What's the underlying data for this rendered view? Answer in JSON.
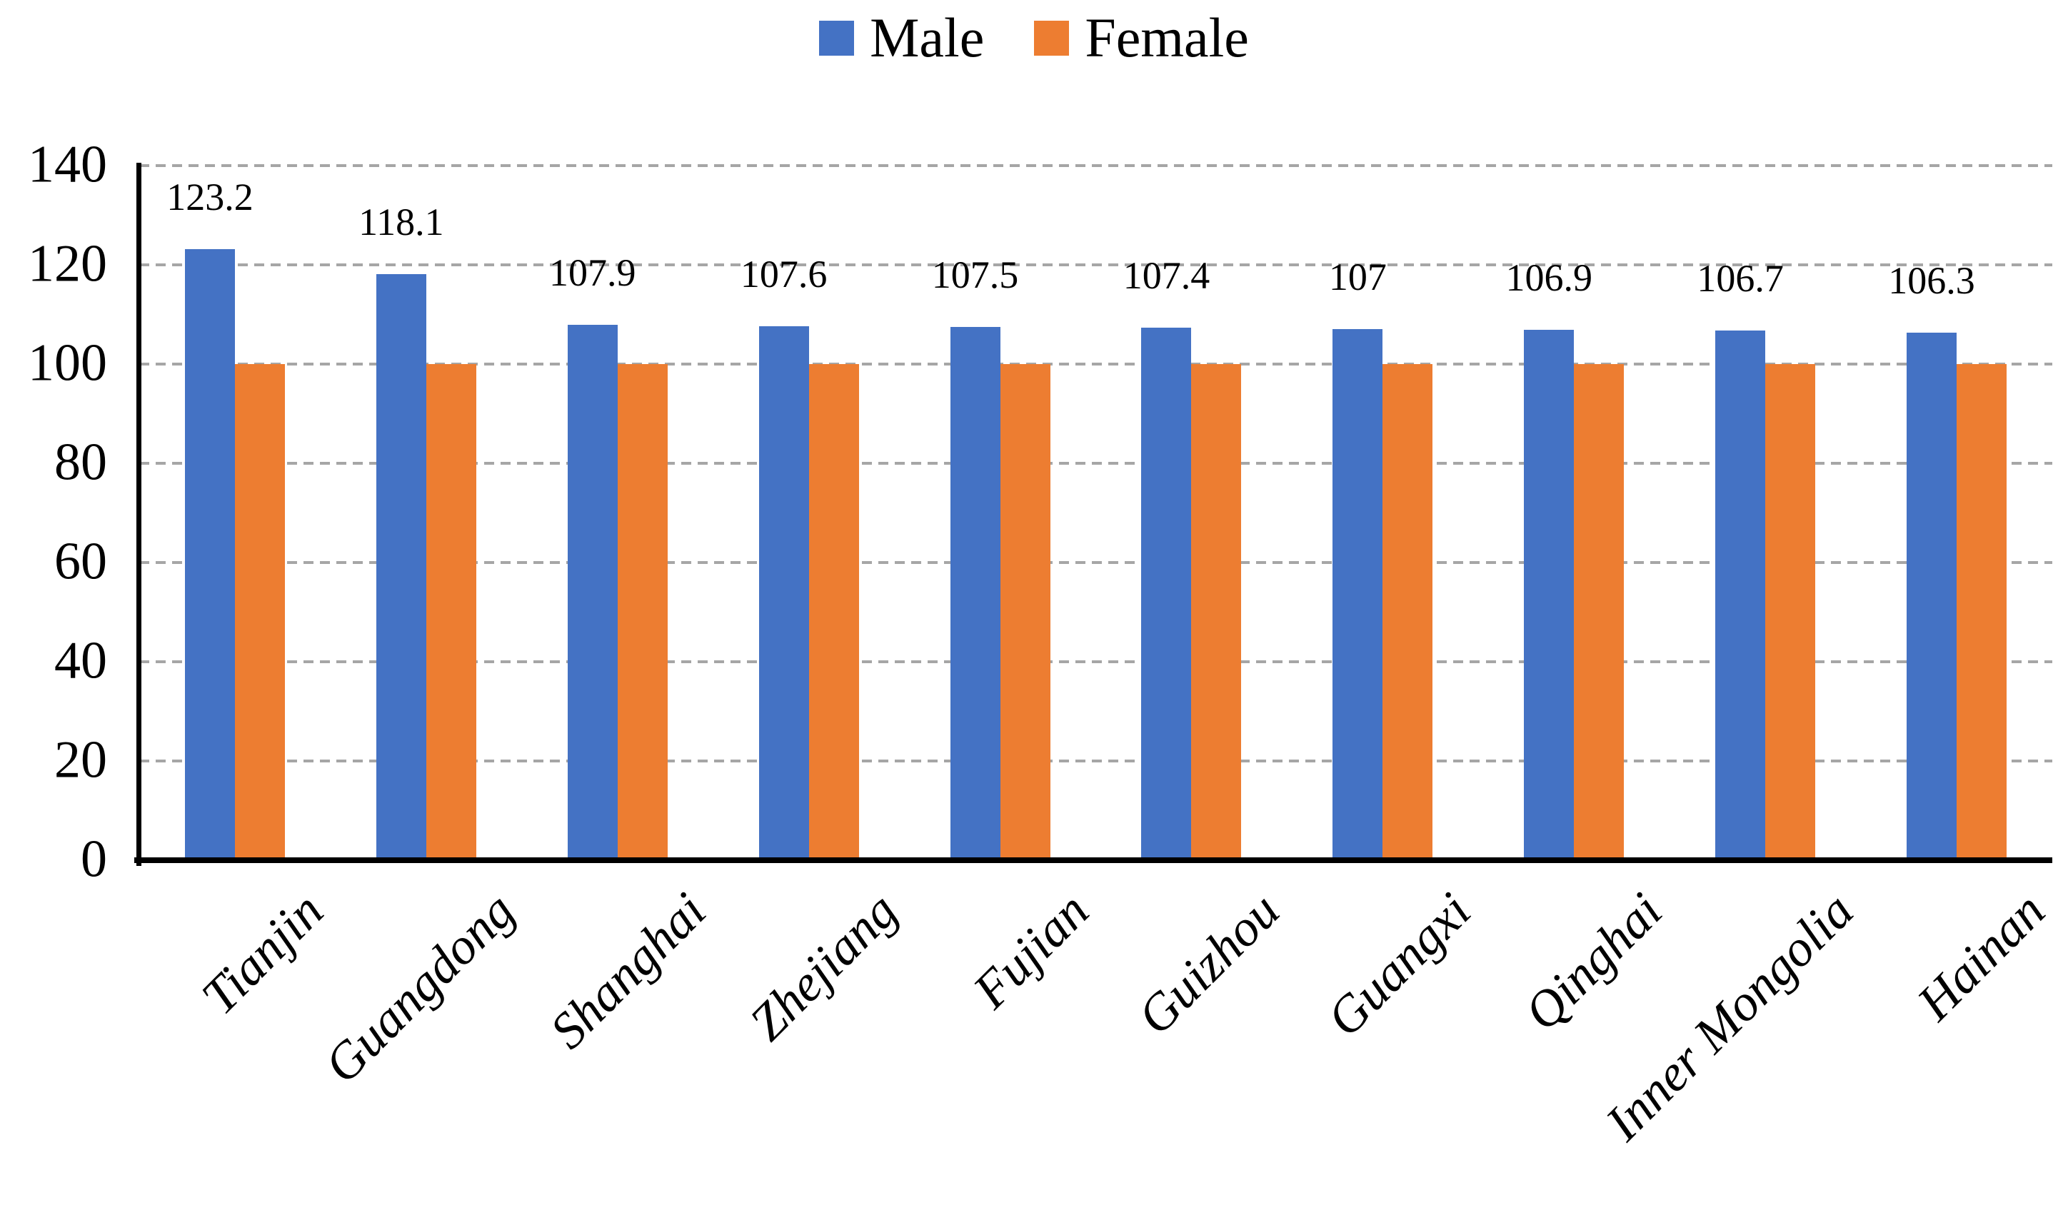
{
  "legend": {
    "items": [
      {
        "label": "Male",
        "color": "#4472C4"
      },
      {
        "label": "Female",
        "color": "#ED7D31"
      }
    ]
  },
  "chart_data": {
    "type": "bar",
    "title": "",
    "xlabel": "",
    "ylabel": "",
    "categories": [
      "Tianjin",
      "Guangdong",
      "Shanghai",
      "Zhejiang",
      "Fujian",
      "Guizhou",
      "Guangxi",
      "Qinghai",
      "Inner Mongolia",
      "Hainan"
    ],
    "series": [
      {
        "name": "Male",
        "color": "#4472C4",
        "values": [
          123.2,
          118.1,
          107.9,
          107.6,
          107.5,
          107.4,
          107,
          106.9,
          106.7,
          106.3
        ],
        "data_labels": [
          "123.2",
          "118.1",
          "107.9",
          "107.6",
          "107.5",
          "107.4",
          "107",
          "106.9",
          "106.7",
          "106.3"
        ]
      },
      {
        "name": "Female",
        "color": "#ED7D31",
        "values": [
          100,
          100,
          100,
          100,
          100,
          100,
          100,
          100,
          100,
          100
        ],
        "data_labels": []
      }
    ],
    "ylim": [
      0,
      140
    ],
    "ytick_step": 20,
    "yticks": [
      "0",
      "20",
      "40",
      "60",
      "80",
      "100",
      "120",
      "140"
    ],
    "grid": "horizontal-dashed",
    "grid_color": "#A6A6A6",
    "axis_color": "#000000",
    "legend_position": "top-center",
    "x_label_rotation_deg": -45,
    "data_label_series": "Male only"
  },
  "colors": {
    "male": "#4472C4",
    "female": "#ED7D31",
    "grid": "#A6A6A6",
    "axis": "#000000",
    "background": "#FFFFFF",
    "text": "#000000"
  }
}
